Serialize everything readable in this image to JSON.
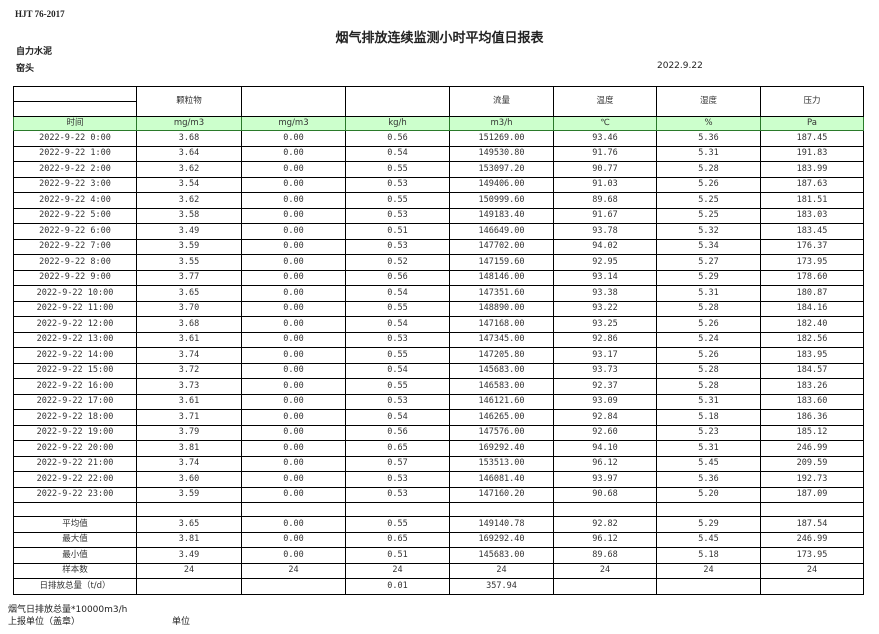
{
  "header": {
    "standard": "HJT  76-2017",
    "title": "烟气排放连续监测小时平均值日报表",
    "company": "自力水泥",
    "unit": "窑头",
    "date": "2022.9.22"
  },
  "table": {
    "columns": [
      "",
      "颗粒物",
      "",
      "",
      "流量",
      "温度",
      "湿度",
      "压力"
    ],
    "units": [
      "时间",
      "mg/m3",
      "mg/m3",
      "kg/h",
      "m3/h",
      "℃",
      "%",
      "Pa"
    ],
    "rows": [
      [
        "2022-9-22 0:00",
        "3.68",
        "0.00",
        "0.56",
        "151269.00",
        "93.46",
        "5.36",
        "187.45"
      ],
      [
        "2022-9-22 1:00",
        "3.64",
        "0.00",
        "0.54",
        "149530.80",
        "91.76",
        "5.31",
        "191.83"
      ],
      [
        "2022-9-22 2:00",
        "3.62",
        "0.00",
        "0.55",
        "153097.20",
        "90.77",
        "5.28",
        "183.99"
      ],
      [
        "2022-9-22 3:00",
        "3.54",
        "0.00",
        "0.53",
        "149406.00",
        "91.03",
        "5.26",
        "187.63"
      ],
      [
        "2022-9-22 4:00",
        "3.62",
        "0.00",
        "0.55",
        "150999.60",
        "89.68",
        "5.25",
        "181.51"
      ],
      [
        "2022-9-22 5:00",
        "3.58",
        "0.00",
        "0.53",
        "149183.40",
        "91.67",
        "5.25",
        "183.03"
      ],
      [
        "2022-9-22 6:00",
        "3.49",
        "0.00",
        "0.51",
        "146649.00",
        "93.78",
        "5.32",
        "183.45"
      ],
      [
        "2022-9-22 7:00",
        "3.59",
        "0.00",
        "0.53",
        "147702.00",
        "94.02",
        "5.34",
        "176.37"
      ],
      [
        "2022-9-22 8:00",
        "3.55",
        "0.00",
        "0.52",
        "147159.60",
        "92.95",
        "5.27",
        "173.95"
      ],
      [
        "2022-9-22 9:00",
        "3.77",
        "0.00",
        "0.56",
        "148146.00",
        "93.14",
        "5.29",
        "178.60"
      ],
      [
        "2022-9-22 10:00",
        "3.65",
        "0.00",
        "0.54",
        "147351.60",
        "93.38",
        "5.31",
        "180.87"
      ],
      [
        "2022-9-22 11:00",
        "3.70",
        "0.00",
        "0.55",
        "148890.00",
        "93.22",
        "5.28",
        "184.16"
      ],
      [
        "2022-9-22 12:00",
        "3.68",
        "0.00",
        "0.54",
        "147168.00",
        "93.25",
        "5.26",
        "182.40"
      ],
      [
        "2022-9-22 13:00",
        "3.61",
        "0.00",
        "0.53",
        "147345.00",
        "92.86",
        "5.24",
        "182.56"
      ],
      [
        "2022-9-22 14:00",
        "3.74",
        "0.00",
        "0.55",
        "147205.80",
        "93.17",
        "5.26",
        "183.95"
      ],
      [
        "2022-9-22 15:00",
        "3.72",
        "0.00",
        "0.54",
        "145683.00",
        "93.73",
        "5.28",
        "184.57"
      ],
      [
        "2022-9-22 16:00",
        "3.73",
        "0.00",
        "0.55",
        "146583.00",
        "92.37",
        "5.28",
        "183.26"
      ],
      [
        "2022-9-22 17:00",
        "3.61",
        "0.00",
        "0.53",
        "146121.60",
        "93.09",
        "5.31",
        "183.60"
      ],
      [
        "2022-9-22 18:00",
        "3.71",
        "0.00",
        "0.54",
        "146265.00",
        "92.84",
        "5.18",
        "186.36"
      ],
      [
        "2022-9-22 19:00",
        "3.79",
        "0.00",
        "0.56",
        "147576.00",
        "92.60",
        "5.23",
        "185.12"
      ],
      [
        "2022-9-22 20:00",
        "3.81",
        "0.00",
        "0.65",
        "169292.40",
        "94.10",
        "5.31",
        "246.99"
      ],
      [
        "2022-9-22 21:00",
        "3.74",
        "0.00",
        "0.57",
        "153513.00",
        "96.12",
        "5.45",
        "209.59"
      ],
      [
        "2022-9-22 22:00",
        "3.60",
        "0.00",
        "0.53",
        "146081.40",
        "93.97",
        "5.36",
        "192.73"
      ],
      [
        "2022-9-22 23:00",
        "3.59",
        "0.00",
        "0.53",
        "147160.20",
        "90.68",
        "5.20",
        "187.09"
      ]
    ],
    "summary": [
      [
        "平均值",
        "3.65",
        "0.00",
        "0.55",
        "149140.78",
        "92.82",
        "5.29",
        "187.54"
      ],
      [
        "最大值",
        "3.81",
        "0.00",
        "0.65",
        "169292.40",
        "96.12",
        "5.45",
        "246.99"
      ],
      [
        "最小值",
        "3.49",
        "0.00",
        "0.51",
        "145683.00",
        "89.68",
        "5.18",
        "173.95"
      ],
      [
        "样本数",
        "24",
        "24",
        "24",
        "24",
        "24",
        "24",
        "24"
      ],
      [
        "日排放总量（t/d）",
        "",
        "",
        "0.01",
        "357.94",
        "",
        "",
        ""
      ]
    ],
    "units_row_color": "#ccffcc"
  },
  "footer": {
    "note": "烟气日排放总量*10000m3/h",
    "reporter": "上报单位（盖章）",
    "unit_label": "单位"
  }
}
